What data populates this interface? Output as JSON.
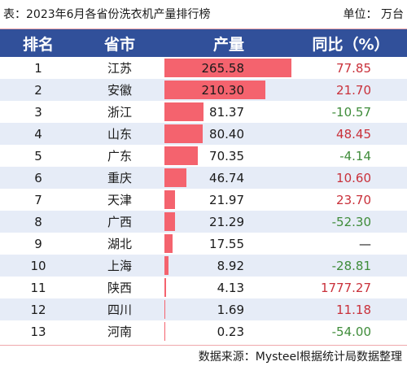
{
  "caption": {
    "title": "表：2023年6月各省份洗衣机产量排行榜",
    "unit": "单位：  万台"
  },
  "headers": {
    "rank": "排名",
    "province": "省市",
    "output": "产量",
    "yoy": "同比（%）"
  },
  "colors": {
    "header_bg": "#31509a",
    "bar": "#f4636e",
    "row_shade": "#e6ecf7",
    "positive": "#c9303a",
    "negative": "#3f8c3a"
  },
  "rows": [
    {
      "rank": "1",
      "province": "江苏",
      "output": "265.58",
      "yoy": "77.85",
      "sign": "pos"
    },
    {
      "rank": "2",
      "province": "安徽",
      "output": "210.30",
      "yoy": "21.70",
      "sign": "pos"
    },
    {
      "rank": "3",
      "province": "浙江",
      "output": "81.37",
      "yoy": "-10.57",
      "sign": "neg"
    },
    {
      "rank": "4",
      "province": "山东",
      "output": "80.40",
      "yoy": "48.45",
      "sign": "pos"
    },
    {
      "rank": "5",
      "province": "广东",
      "output": "70.35",
      "yoy": "-4.14",
      "sign": "neg"
    },
    {
      "rank": "6",
      "province": "重庆",
      "output": "46.74",
      "yoy": "10.60",
      "sign": "pos"
    },
    {
      "rank": "7",
      "province": "天津",
      "output": "21.97",
      "yoy": "23.70",
      "sign": "pos"
    },
    {
      "rank": "8",
      "province": "广西",
      "output": "21.29",
      "yoy": "-52.30",
      "sign": "neg"
    },
    {
      "rank": "9",
      "province": "湖北",
      "output": "17.55",
      "yoy": "—",
      "sign": "none"
    },
    {
      "rank": "10",
      "province": "上海",
      "output": "8.92",
      "yoy": "-28.81",
      "sign": "neg"
    },
    {
      "rank": "11",
      "province": "陕西",
      "output": "4.13",
      "yoy": "1777.27",
      "sign": "pos"
    },
    {
      "rank": "12",
      "province": "四川",
      "output": "1.69",
      "yoy": "11.18",
      "sign": "pos"
    },
    {
      "rank": "13",
      "province": "河南",
      "output": "0.23",
      "yoy": "-54.00",
      "sign": "neg"
    }
  ],
  "footer": {
    "source": "数据来源：Mysteel根据统计局数据整理"
  }
}
